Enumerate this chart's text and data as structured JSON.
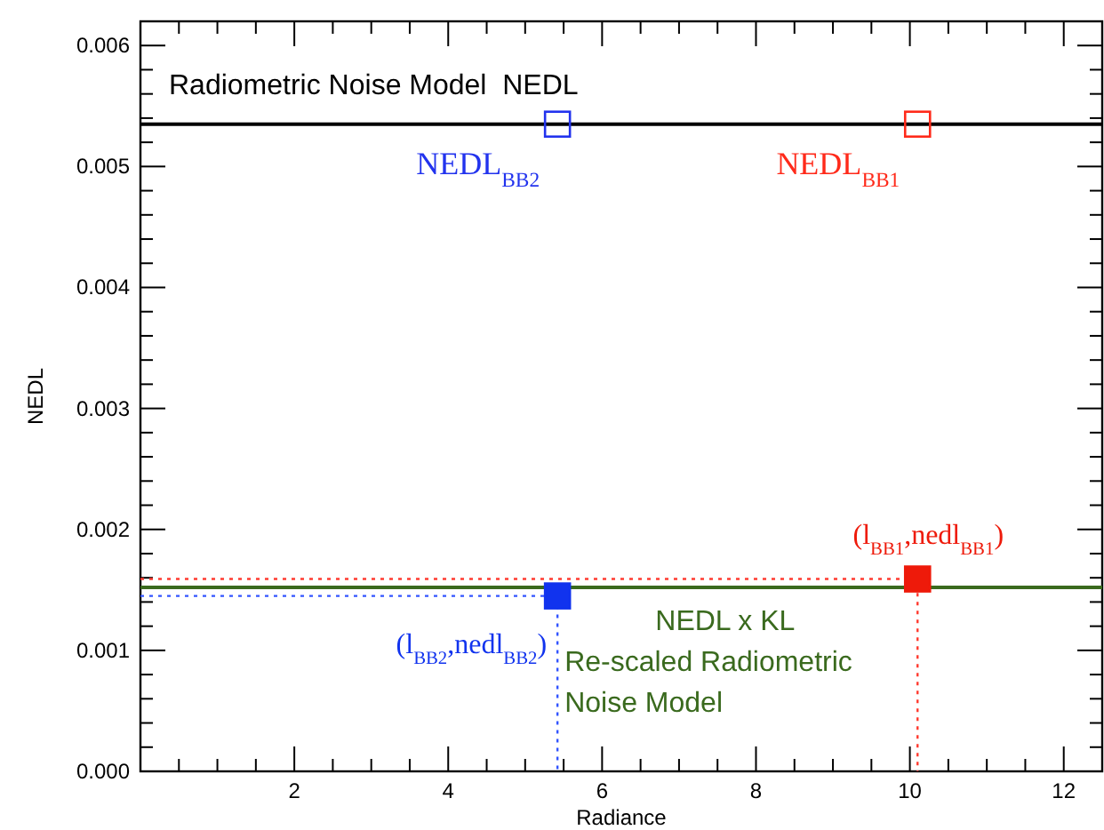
{
  "chart_data": {
    "type": "line",
    "title": "Radiometric Noise Model  NEDL",
    "xlabel": "Radiance",
    "ylabel": "NEDL",
    "xlim": [
      0,
      12.5
    ],
    "ylim": [
      0,
      0.0062
    ],
    "xticks": [
      {
        "value": 0.5,
        "label": null
      },
      {
        "value": 1,
        "label": null
      },
      {
        "value": 1.5,
        "label": null
      },
      2,
      {
        "value": 2.5,
        "label": null
      },
      {
        "value": 3,
        "label": null
      },
      {
        "value": 3.5,
        "label": null
      },
      4,
      {
        "value": 4.5,
        "label": null
      },
      {
        "value": 5,
        "label": null
      },
      {
        "value": 5.5,
        "label": null
      },
      6,
      {
        "value": 6.5,
        "label": null
      },
      {
        "value": 7,
        "label": null
      },
      {
        "value": 7.5,
        "label": null
      },
      8,
      {
        "value": 8.5,
        "label": null
      },
      {
        "value": 9,
        "label": null
      },
      {
        "value": 9.5,
        "label": null
      },
      10,
      {
        "value": 10.5,
        "label": null
      },
      {
        "value": 11,
        "label": null
      },
      {
        "value": 11.5,
        "label": null
      },
      12
    ],
    "yticks": [
      {
        "value": 0,
        "label": "0.000"
      },
      {
        "value": 0.0002,
        "label": null
      },
      {
        "value": 0.0004,
        "label": null
      },
      {
        "value": 0.0006,
        "label": null
      },
      {
        "value": 0.0008,
        "label": null
      },
      {
        "value": 0.001,
        "label": "0.001"
      },
      {
        "value": 0.0012,
        "label": null
      },
      {
        "value": 0.0014,
        "label": null
      },
      {
        "value": 0.0016,
        "label": null
      },
      {
        "value": 0.0018,
        "label": null
      },
      {
        "value": 0.002,
        "label": "0.002"
      },
      {
        "value": 0.0022,
        "label": null
      },
      {
        "value": 0.0024,
        "label": null
      },
      {
        "value": 0.0026,
        "label": null
      },
      {
        "value": 0.0028,
        "label": null
      },
      {
        "value": 0.003,
        "label": "0.003"
      },
      {
        "value": 0.0032,
        "label": null
      },
      {
        "value": 0.0034,
        "label": null
      },
      {
        "value": 0.0036,
        "label": null
      },
      {
        "value": 0.0038,
        "label": null
      },
      {
        "value": 0.004,
        "label": "0.004"
      },
      {
        "value": 0.0042,
        "label": null
      },
      {
        "value": 0.0044,
        "label": null
      },
      {
        "value": 0.0046,
        "label": null
      },
      {
        "value": 0.0048,
        "label": null
      },
      {
        "value": 0.005,
        "label": "0.005"
      },
      {
        "value": 0.0052,
        "label": null
      },
      {
        "value": 0.0054,
        "label": null
      },
      {
        "value": 0.0056,
        "label": null
      },
      {
        "value": 0.0058,
        "label": null
      },
      {
        "value": 0.006,
        "label": "0.006"
      }
    ],
    "grid": false,
    "series": [
      {
        "color": "#000000",
        "x": [
          0,
          12.5
        ],
        "values": [
          0.00535,
          0.00535
        ],
        "line_style": "solid"
      },
      {
        "color": "#ff3b30",
        "x": [
          0,
          10.1,
          10.1
        ],
        "values": [
          0.00159,
          0.00159,
          0
        ],
        "line_style": "dotted"
      },
      {
        "color": "#3355ff",
        "x": [
          0,
          5.42,
          5.42
        ],
        "values": [
          0.00145,
          0.00145,
          0
        ],
        "line_style": "dotted"
      },
      {
        "name": "NEDL x KL\nRe-scaled Radiometric\nNoise Model",
        "color": "#3a6a1e",
        "x": [
          0,
          12.5
        ],
        "values": [
          0.00152,
          0.00152
        ],
        "line_style": "solid"
      },
      {
        "type": "scatter",
        "name": "NEDL$_{BB2}$",
        "color": "#2233ee",
        "x": [
          5.42
        ],
        "values": [
          0.00535
        ],
        "marker": "square"
      },
      {
        "type": "scatter",
        "name": "NEDL$_{BB1}$",
        "color": "#ff2a1a",
        "x": [
          10.1
        ],
        "values": [
          0.00535
        ],
        "marker": "square"
      },
      {
        "type": "scatter",
        "name": "(l$_{BB2}$,nedl$_{BB2}$)",
        "color": "#1133ee",
        "x": [
          5.42
        ],
        "values": [
          0.00145
        ],
        "marker": "square"
      },
      {
        "type": "scatter",
        "name": "(l$_{BB1}$,nedl$_{BB1}$)",
        "color": "#ee1a0a",
        "x": [
          10.1
        ],
        "values": [
          0.00159
        ],
        "marker": "square"
      }
    ]
  }
}
